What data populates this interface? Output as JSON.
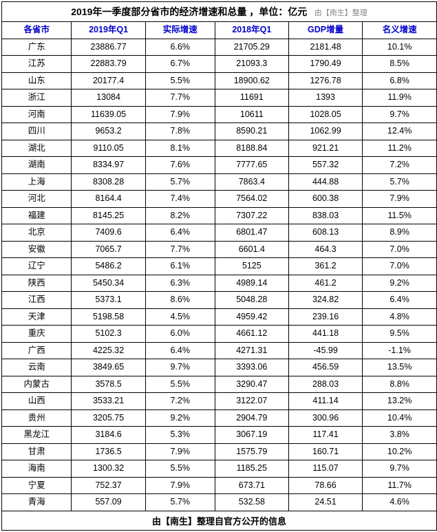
{
  "title": {
    "main": "2019年一季度部分省市的经济增速和总量 ，单位：亿元",
    "source": "由【南生】整理"
  },
  "table": {
    "type": "table",
    "columns": [
      "各省市",
      "2019年Q1",
      "实际增速",
      "2018年Q1",
      "GDP增量",
      "名义增速"
    ],
    "col_widths_pct": [
      16,
      17,
      16,
      17,
      17,
      17
    ],
    "header_color": "#0000cc",
    "border_color": "#000000",
    "background_color": "#ffffff",
    "text_color": "#000000",
    "font_size": 12.5,
    "rows": [
      [
        "广东",
        "23886.77",
        "6.6%",
        "21705.29",
        "2181.48",
        "10.1%"
      ],
      [
        "江苏",
        "22883.79",
        "6.7%",
        "21093.3",
        "1790.49",
        "8.5%"
      ],
      [
        "山东",
        "20177.4",
        "5.5%",
        "18900.62",
        "1276.78",
        "6.8%"
      ],
      [
        "浙江",
        "13084",
        "7.7%",
        "11691",
        "1393",
        "11.9%"
      ],
      [
        "河南",
        "11639.05",
        "7.9%",
        "10611",
        "1028.05",
        "9.7%"
      ],
      [
        "四川",
        "9653.2",
        "7.8%",
        "8590.21",
        "1062.99",
        "12.4%"
      ],
      [
        "湖北",
        "9110.05",
        "8.1%",
        "8188.84",
        "921.21",
        "11.2%"
      ],
      [
        "湖南",
        "8334.97",
        "7.6%",
        "7777.65",
        "557.32",
        "7.2%"
      ],
      [
        "上海",
        "8308.28",
        "5.7%",
        "7863.4",
        "444.88",
        "5.7%"
      ],
      [
        "河北",
        "8164.4",
        "7.4%",
        "7564.02",
        "600.38",
        "7.9%"
      ],
      [
        "福建",
        "8145.25",
        "8.2%",
        "7307.22",
        "838.03",
        "11.5%"
      ],
      [
        "北京",
        "7409.6",
        "6.4%",
        "6801.47",
        "608.13",
        "8.9%"
      ],
      [
        "安徽",
        "7065.7",
        "7.7%",
        "6601.4",
        "464.3",
        "7.0%"
      ],
      [
        "辽宁",
        "5486.2",
        "6.1%",
        "5125",
        "361.2",
        "7.0%"
      ],
      [
        "陕西",
        "5450.34",
        "6.3%",
        "4989.14",
        "461.2",
        "9.2%"
      ],
      [
        "江西",
        "5373.1",
        "8.6%",
        "5048.28",
        "324.82",
        "6.4%"
      ],
      [
        "天津",
        "5198.58",
        "4.5%",
        "4959.42",
        "239.16",
        "4.8%"
      ],
      [
        "重庆",
        "5102.3",
        "6.0%",
        "4661.12",
        "441.18",
        "9.5%"
      ],
      [
        "广西",
        "4225.32",
        "6.4%",
        "4271.31",
        "-45.99",
        "-1.1%"
      ],
      [
        "云南",
        "3849.65",
        "9.7%",
        "3393.06",
        "456.59",
        "13.5%"
      ],
      [
        "内蒙古",
        "3578.5",
        "5.5%",
        "3290.47",
        "288.03",
        "8.8%"
      ],
      [
        "山西",
        "3533.21",
        "7.2%",
        "3122.07",
        "411.14",
        "13.2%"
      ],
      [
        "贵州",
        "3205.75",
        "9.2%",
        "2904.79",
        "300.96",
        "10.4%"
      ],
      [
        "黑龙江",
        "3184.6",
        "5.3%",
        "3067.19",
        "117.41",
        "3.8%"
      ],
      [
        "甘肃",
        "1736.5",
        "7.9%",
        "1575.79",
        "160.71",
        "10.2%"
      ],
      [
        "海南",
        "1300.32",
        "5.5%",
        "1185.25",
        "115.07",
        "9.7%"
      ],
      [
        "宁夏",
        "752.37",
        "7.9%",
        "673.71",
        "78.66",
        "11.7%"
      ],
      [
        "青海",
        "557.09",
        "5.7%",
        "532.58",
        "24.51",
        "4.6%"
      ]
    ]
  },
  "footer": "由【南生】整理自官方公开的信息"
}
